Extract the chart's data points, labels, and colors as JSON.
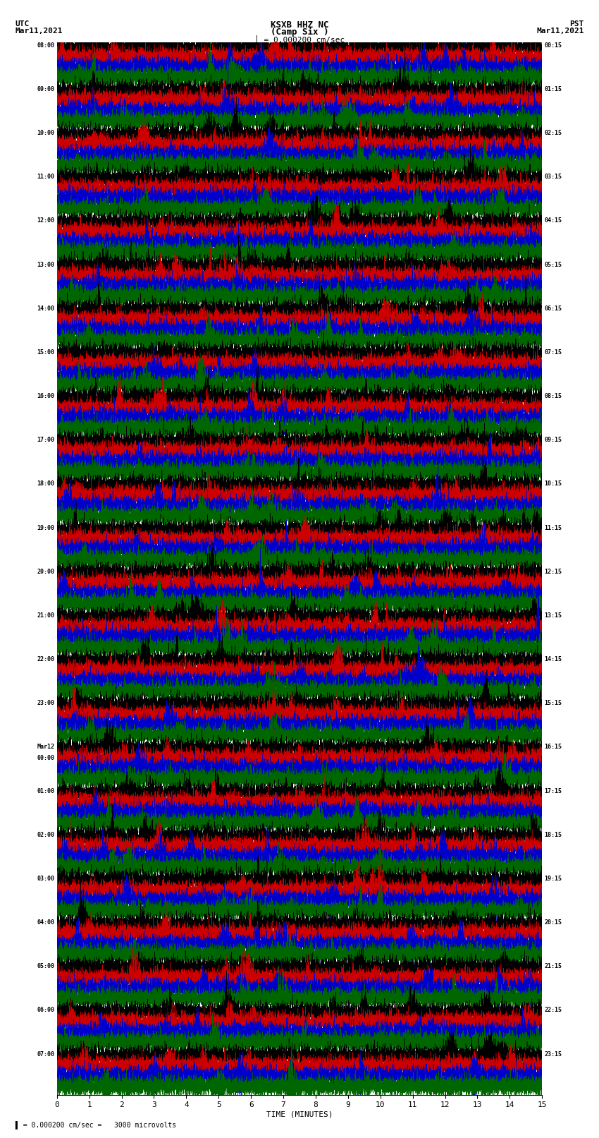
{
  "title_line1": "KSXB HHZ NC",
  "title_line2": "(Camp Six )",
  "scale_label": "= 0.000200 cm/sec",
  "utc_label": "UTC",
  "utc_date": "Mar11,2021",
  "pst_label": "PST",
  "pst_date": "Mar11,2021",
  "xlabel": "TIME (MINUTES)",
  "bottom_label": "= 0.000200 cm/sec =   3000 microvolts",
  "xlim": [
    0,
    15
  ],
  "background_color": "#ffffff",
  "trace_colors": [
    "#000000",
    "#cc0000",
    "#0000cc",
    "#006600"
  ],
  "left_times_utc": [
    "08:00",
    "09:00",
    "10:00",
    "11:00",
    "12:00",
    "13:00",
    "14:00",
    "15:00",
    "16:00",
    "17:00",
    "18:00",
    "19:00",
    "20:00",
    "21:00",
    "22:00",
    "23:00",
    "Mar12\n00:00",
    "01:00",
    "02:00",
    "03:00",
    "04:00",
    "05:00",
    "06:00",
    "07:00"
  ],
  "left_times_display": [
    "08:00",
    "09:00",
    "10:00",
    "11:00",
    "12:00",
    "13:00",
    "14:00",
    "15:00",
    "16:00",
    "17:00",
    "18:00",
    "19:00",
    "20:00",
    "21:00",
    "22:00",
    "23:00",
    "Mar12",
    "01:00",
    "02:00",
    "03:00",
    "04:00",
    "05:00",
    "06:00",
    "07:00"
  ],
  "left_times_sub": [
    "",
    "",
    "",
    "",
    "",
    "",
    "",
    "",
    "",
    "",
    "",
    "",
    "",
    "",
    "",
    "",
    "00:00",
    "",
    "",
    "",
    "",
    "",
    "",
    ""
  ],
  "right_times_pst": [
    "00:15",
    "01:15",
    "02:15",
    "03:15",
    "04:15",
    "05:15",
    "06:15",
    "07:15",
    "08:15",
    "09:15",
    "10:15",
    "11:15",
    "12:15",
    "13:15",
    "14:15",
    "15:15",
    "16:15",
    "17:15",
    "18:15",
    "19:15",
    "20:15",
    "21:15",
    "22:15",
    "23:15"
  ],
  "n_rows": 24,
  "n_traces": 4,
  "n_points": 9000,
  "grid_color": "#999999",
  "grid_linewidth": 0.4
}
